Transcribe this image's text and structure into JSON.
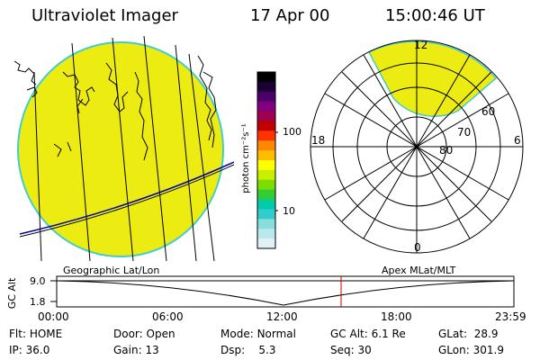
{
  "header": {
    "title": "Ultraviolet Imager",
    "date": "17 Apr 00",
    "time": "15:00:46 UT"
  },
  "colorbar": {
    "unit_label": "photon cm⁻²s⁻¹",
    "ticks": [
      "100",
      "10"
    ],
    "colors": [
      "#000000",
      "#1a0033",
      "#4a0066",
      "#800080",
      "#a00050",
      "#c00000",
      "#ff3300",
      "#ff8800",
      "#ffbb00",
      "#ffff00",
      "#c8ee00",
      "#7ddc00",
      "#33cc33",
      "#00ccaa",
      "#33cccc",
      "#88dddd",
      "#bbe8ee",
      "#e0f0f4"
    ]
  },
  "polar_plot": {
    "mlt_labels": [
      "12",
      "18",
      "6",
      "0"
    ],
    "lat_labels": [
      "60",
      "70",
      "80"
    ]
  },
  "alt_panel": {
    "left_caption": "Geographic Lat/Lon",
    "right_caption": "Apex  MLat/MLT",
    "axis_label": "GC Alt",
    "y_ticks": [
      "9.0",
      "1.8"
    ],
    "x_ticks": [
      "00:00",
      "06:00",
      "12:00",
      "18:00",
      "23:59"
    ]
  },
  "status": {
    "flt_label": "Flt:",
    "flt_value": "HOME",
    "ip_label": "IP:",
    "ip_value": "36.0",
    "door_label": "Door:",
    "door_value": "Open",
    "gain_label": "Gain:",
    "gain_value": "13",
    "mode_label": "Mode:",
    "mode_value": "Normal",
    "dsp_label": "Dsp:",
    "dsp_value": "5.3",
    "gcalt_label": "GC Alt:",
    "gcalt_value": "6.1 Re",
    "seq_label": "Seq:",
    "seq_value": "30",
    "glat_label": "GLat:",
    "glat_value": "28.9",
    "glon_label": "GLon:",
    "glon_value": "301.9"
  },
  "colors": {
    "glow": "#ecec12",
    "glow_edge": "#44cccc",
    "marker": "#cc0000",
    "orbit": "#0000aa"
  }
}
